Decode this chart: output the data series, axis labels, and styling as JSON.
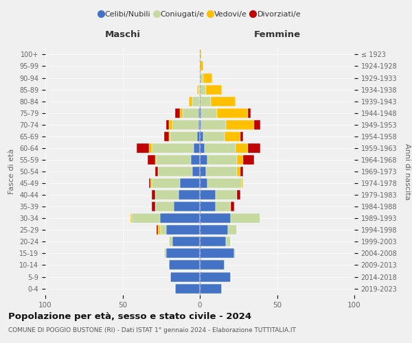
{
  "age_groups": [
    "0-4",
    "5-9",
    "10-14",
    "15-19",
    "20-24",
    "25-29",
    "30-34",
    "35-39",
    "40-44",
    "45-49",
    "50-54",
    "55-59",
    "60-64",
    "65-69",
    "70-74",
    "75-79",
    "80-84",
    "85-89",
    "90-94",
    "95-99",
    "100+"
  ],
  "birth_years": [
    "2019-2023",
    "2014-2018",
    "2009-2013",
    "2004-2008",
    "1999-2003",
    "1994-1998",
    "1989-1993",
    "1984-1988",
    "1979-1983",
    "1974-1978",
    "1969-1973",
    "1964-1968",
    "1959-1963",
    "1954-1958",
    "1949-1953",
    "1944-1948",
    "1939-1943",
    "1934-1938",
    "1929-1933",
    "1924-1928",
    "≤ 1923"
  ],
  "maschi": {
    "celibi": [
      16,
      19,
      20,
      22,
      18,
      22,
      26,
      17,
      14,
      13,
      5,
      6,
      4,
      2,
      1,
      1,
      0,
      0,
      0,
      0,
      0
    ],
    "coniugati": [
      0,
      0,
      0,
      1,
      2,
      4,
      18,
      12,
      15,
      18,
      22,
      22,
      27,
      17,
      17,
      10,
      5,
      1,
      0,
      0,
      0
    ],
    "vedovi": [
      0,
      0,
      0,
      0,
      0,
      1,
      1,
      0,
      0,
      1,
      0,
      1,
      2,
      1,
      2,
      2,
      2,
      1,
      0,
      0,
      0
    ],
    "divorziati": [
      0,
      0,
      0,
      0,
      0,
      1,
      0,
      2,
      2,
      1,
      2,
      5,
      8,
      3,
      2,
      3,
      0,
      0,
      0,
      0,
      0
    ]
  },
  "femmine": {
    "nubili": [
      14,
      20,
      16,
      22,
      17,
      18,
      20,
      10,
      10,
      5,
      4,
      5,
      3,
      2,
      1,
      1,
      0,
      0,
      0,
      0,
      0
    ],
    "coniugate": [
      0,
      0,
      0,
      1,
      3,
      6,
      19,
      10,
      14,
      22,
      20,
      19,
      20,
      14,
      16,
      10,
      7,
      4,
      2,
      0,
      0
    ],
    "vedove": [
      0,
      0,
      0,
      0,
      0,
      0,
      0,
      0,
      0,
      1,
      2,
      4,
      8,
      10,
      18,
      20,
      16,
      10,
      6,
      2,
      1
    ],
    "divorziate": [
      0,
      0,
      0,
      0,
      0,
      0,
      0,
      2,
      2,
      0,
      2,
      7,
      8,
      2,
      4,
      2,
      0,
      0,
      0,
      0,
      0
    ]
  },
  "colors": {
    "celibi": "#4472c4",
    "coniugati": "#c5d9a0",
    "vedovi": "#ffc000",
    "divorziati": "#c00000"
  },
  "xlim": 100,
  "title": "Popolazione per età, sesso e stato civile - 2024",
  "subtitle": "COMUNE DI POGGIO BUSTONE (RI) - Dati ISTAT 1° gennaio 2024 - Elaborazione TUTTITALIA.IT",
  "ylabel_left": "Fasce di età",
  "ylabel_right": "Anni di nascita",
  "xlabel_maschi": "Maschi",
  "xlabel_femmine": "Femmine",
  "legend_labels": [
    "Celibi/Nubili",
    "Coniugati/e",
    "Vedovi/e",
    "Divorziati/e"
  ],
  "bg_color": "#f0f0f0"
}
